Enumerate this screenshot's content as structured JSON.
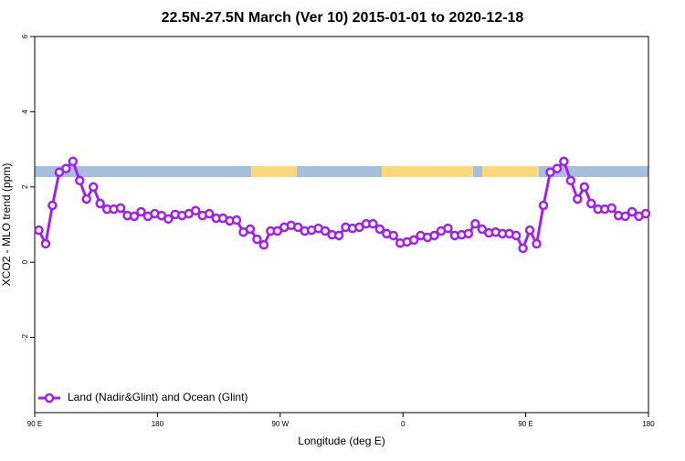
{
  "chart_data": {
    "type": "line",
    "title": "22.5N-27.5N March (Ver 10)   2015-01-01 to 2020-12-18",
    "x_label": "Longitude (deg E)",
    "y_label": "XCO2 - MLO trend (ppm)",
    "x": [
      93,
      98,
      103,
      108,
      113,
      118,
      123,
      128,
      133,
      138,
      143,
      148,
      153,
      158,
      163,
      168,
      173,
      178,
      183,
      188,
      193,
      198,
      203,
      208,
      213,
      218,
      223,
      228,
      233,
      238,
      243,
      248,
      253,
      258,
      263,
      268,
      273,
      278,
      283,
      288,
      293,
      298,
      303,
      308,
      313,
      318,
      323,
      328,
      333,
      338,
      343,
      348,
      353,
      358,
      363,
      368,
      373,
      378,
      383,
      388,
      393,
      398,
      403,
      408,
      413,
      418,
      423,
      428,
      433,
      438,
      443,
      448,
      453,
      458,
      463,
      468,
      473,
      478,
      483,
      488,
      493,
      498,
      503,
      508,
      513,
      518,
      523,
      528,
      533,
      538
    ],
    "series": [
      {
        "name": "Land (Nadir&Glint) and Ocean (Glint)",
        "color": "#a020f0",
        "values": [
          0.85,
          0.49,
          1.51,
          2.39,
          2.49,
          2.68,
          2.17,
          1.68,
          2.0,
          1.56,
          1.41,
          1.41,
          1.44,
          1.24,
          1.22,
          1.34,
          1.22,
          1.29,
          1.24,
          1.15,
          1.27,
          1.24,
          1.29,
          1.37,
          1.24,
          1.29,
          1.17,
          1.17,
          1.1,
          1.12,
          0.8,
          0.88,
          0.61,
          0.46,
          0.83,
          0.83,
          0.93,
          0.98,
          0.93,
          0.83,
          0.85,
          0.9,
          0.83,
          0.73,
          0.71,
          0.93,
          0.9,
          0.93,
          1.02,
          1.02,
          0.88,
          0.76,
          0.71,
          0.51,
          0.54,
          0.59,
          0.71,
          0.66,
          0.71,
          0.83,
          0.9,
          0.71,
          0.73,
          0.76,
          1.02,
          0.88,
          0.78,
          0.8,
          0.76,
          0.76,
          0.71,
          0.37,
          0.85,
          0.49,
          1.51,
          2.39,
          2.49,
          2.68,
          2.17,
          1.68,
          2.0,
          1.56,
          1.41,
          1.41,
          1.44,
          1.24,
          1.22,
          1.34,
          1.22,
          1.29
        ]
      }
    ],
    "xlim": [
      90,
      540
    ],
    "xticks": [
      {
        "value": 90,
        "label": "90 E"
      },
      180,
      {
        "value": 270,
        "label": "90 W"
      },
      {
        "value": 360,
        "label": "0"
      },
      {
        "value": 450,
        "label": "90 E"
      },
      {
        "value": 540,
        "label": "180"
      }
    ],
    "ylim": [
      -4,
      6
    ],
    "yticks": [
      -2,
      0,
      2,
      4,
      6
    ],
    "legend": "lower left"
  }
}
